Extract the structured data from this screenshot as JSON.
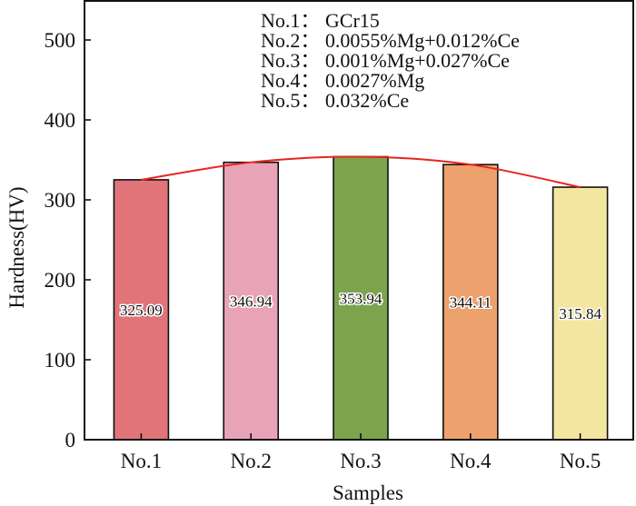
{
  "chart_data": {
    "type": "bar",
    "title": "",
    "xlabel": "Samples",
    "ylabel": "Hardness(HV)",
    "categories": [
      "No.1",
      "No.2",
      "No.3",
      "No.4",
      "No.5"
    ],
    "values": [
      325.09,
      346.94,
      353.94,
      344.11,
      315.84
    ],
    "value_labels": [
      "325.09",
      "346.94",
      "353.94",
      "344.11",
      "315.84"
    ],
    "bar_colors": [
      "#e07479",
      "#e8a3b7",
      "#7ba44c",
      "#eda16c",
      "#f3e6a1"
    ],
    "ylim": [
      0,
      550
    ],
    "yticks": [
      0,
      100,
      200,
      300,
      400,
      500
    ],
    "ytick_labels": [
      "0",
      "100",
      "200",
      "300",
      "400",
      "500"
    ],
    "grid": false,
    "trend_line": {
      "type": "smooth curve through bar tops",
      "color": "#e8241c"
    },
    "annotation_lines": [
      "No.1： GCr15",
      "No.2： 0.0055%Mg+0.012%Ce",
      "No.3： 0.001%Mg+0.027%Ce",
      "No.4： 0.0027%Mg",
      "No.5： 0.032%Ce"
    ],
    "annotation_placement": "top-center"
  }
}
